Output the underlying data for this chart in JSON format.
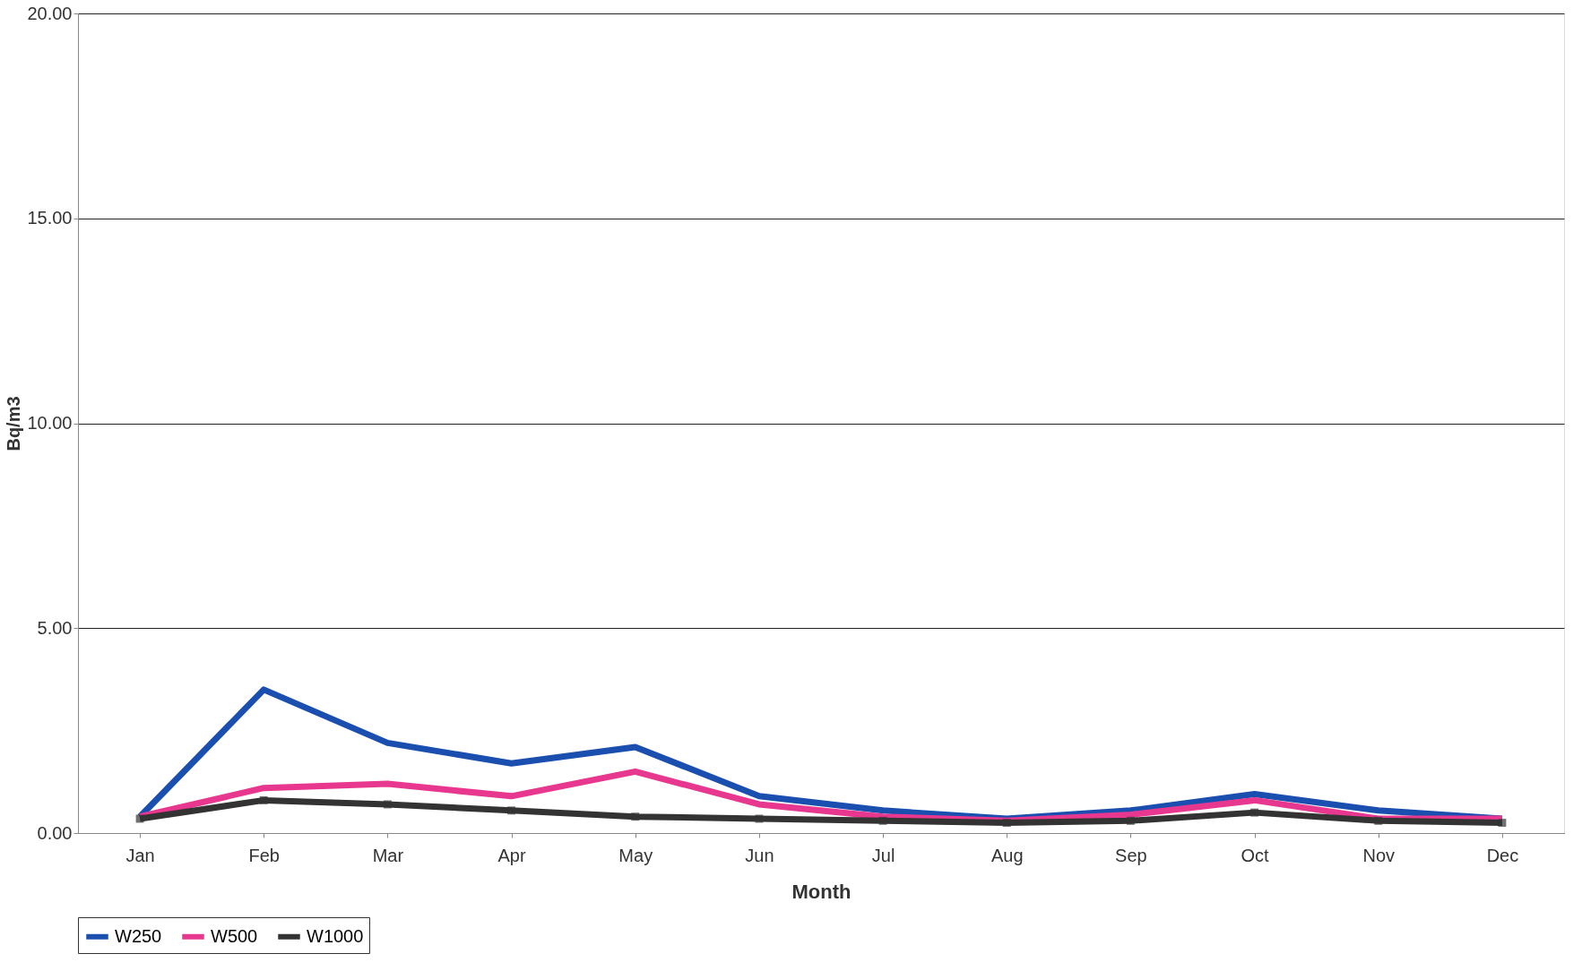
{
  "chart_data": {
    "type": "line",
    "xlabel": "Month",
    "ylabel": "Bq/m3",
    "categories": [
      "Jan",
      "Feb",
      "Mar",
      "Apr",
      "May",
      "Jun",
      "Jul",
      "Aug",
      "Sep",
      "Oct",
      "Nov",
      "Dec"
    ],
    "series": [
      {
        "name": "W250",
        "color": "#1a4fb0",
        "values": [
          0.4,
          3.5,
          2.2,
          1.7,
          2.1,
          0.9,
          0.55,
          0.35,
          0.55,
          0.95,
          0.55,
          0.35
        ]
      },
      {
        "name": "W500",
        "color": "#e8378f",
        "values": [
          0.4,
          1.1,
          1.2,
          0.9,
          1.5,
          0.7,
          0.4,
          0.3,
          0.45,
          0.8,
          0.35,
          0.35
        ]
      },
      {
        "name": "W1000",
        "color": "#333333",
        "marker": "square",
        "values": [
          0.35,
          0.8,
          0.7,
          0.55,
          0.4,
          0.35,
          0.3,
          0.25,
          0.3,
          0.5,
          0.3,
          0.25
        ]
      }
    ],
    "ylim": [
      0,
      20
    ],
    "yticks": [
      {
        "value": 0,
        "label": "0.00"
      },
      {
        "value": 5,
        "label": "5.00"
      },
      {
        "value": 10,
        "label": "10.00"
      },
      {
        "value": 15,
        "label": "15.00"
      },
      {
        "value": 20,
        "label": "20.00"
      }
    ],
    "grid": "y",
    "legend": "bottom",
    "line_style": "solid"
  }
}
